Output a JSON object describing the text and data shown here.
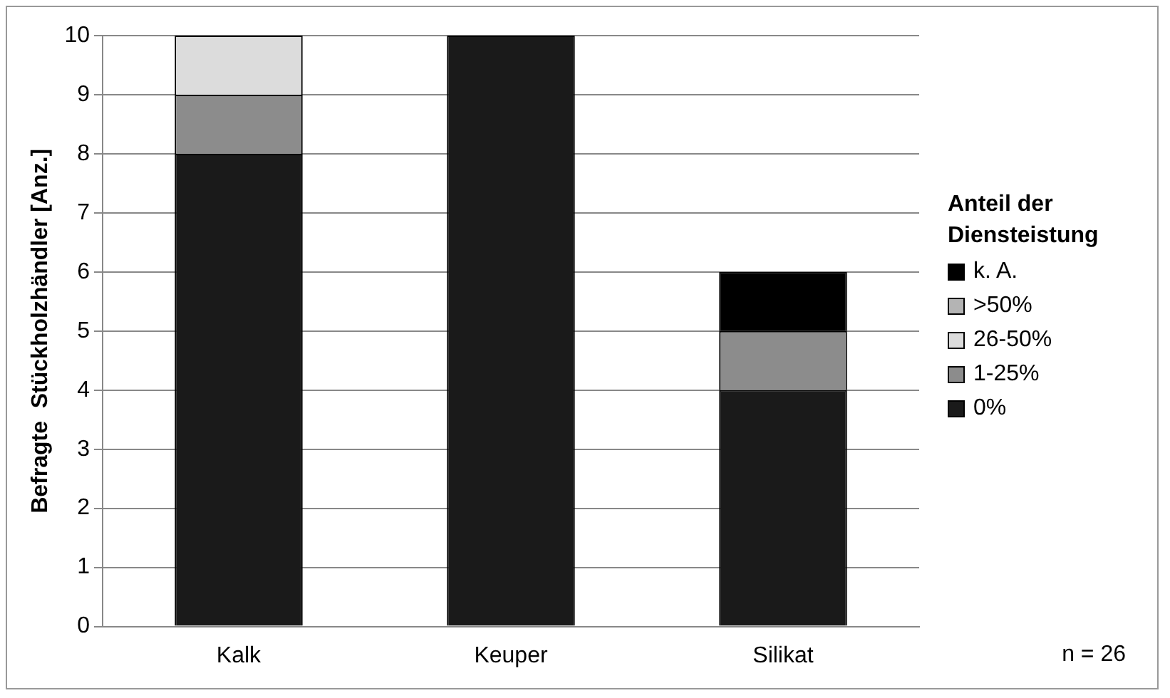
{
  "chart_data": {
    "type": "bar",
    "stacked": true,
    "ylabel": "Befragte  Stückholzhändler [Anz.]",
    "legend_title": "Anteil der Diensteistung",
    "categories": [
      "Kalk",
      "Keuper",
      "Silikat"
    ],
    "series": [
      {
        "name": "0%",
        "color": "#1a1a1a",
        "values": [
          8,
          10,
          4
        ]
      },
      {
        "name": "1-25%",
        "color": "#8c8c8c",
        "values": [
          1,
          0,
          1
        ]
      },
      {
        "name": "26-50%",
        "color": "#dcdcdc",
        "values": [
          1,
          0,
          0
        ]
      },
      {
        "name": ">50%",
        "color": "#b4b4b4",
        "values": [
          0,
          0,
          0
        ]
      },
      {
        "name": "k. A.",
        "color": "#000000",
        "values": [
          0,
          0,
          1
        ]
      }
    ],
    "ylim": [
      0,
      10
    ],
    "yticks": [
      0,
      1,
      2,
      3,
      4,
      5,
      6,
      7,
      8,
      9,
      10
    ],
    "grid": "y",
    "legend": "right",
    "annotations": [
      "n = 26"
    ]
  }
}
